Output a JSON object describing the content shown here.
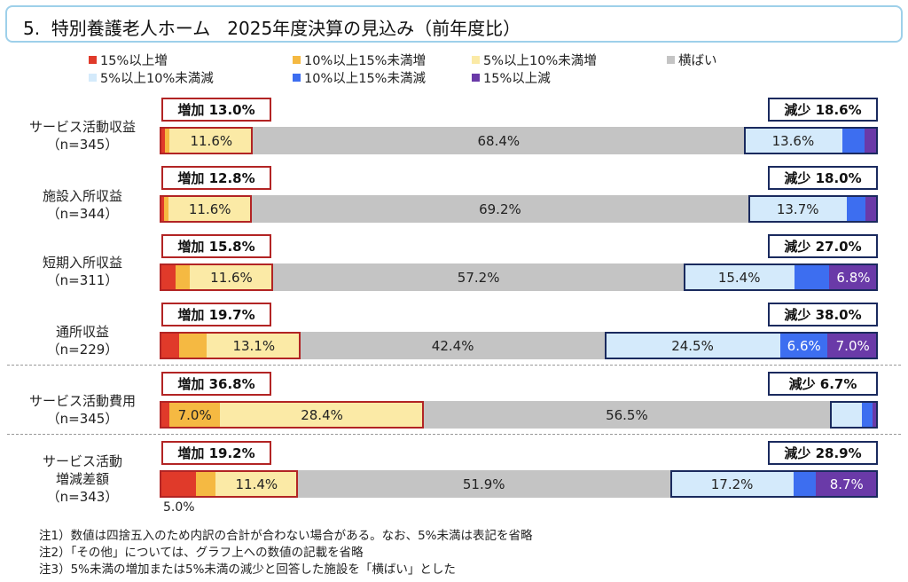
{
  "title": "5.  特別養護老人ホーム   2025年度決算の見込み（前年度比）",
  "legend": [
    {
      "key": "inc15",
      "label": "15%以上増",
      "color": "#e03a2a"
    },
    {
      "key": "inc10",
      "label": "10%以上15%未満増",
      "color": "#f5b942"
    },
    {
      "key": "inc5",
      "label": "5%以上10%未満増",
      "color": "#fbeaa6"
    },
    {
      "key": "flat",
      "label": "横ばい",
      "color": "#c4c4c4"
    },
    {
      "key": "dec5",
      "label": "5%以上10%未満減",
      "color": "#d4eafb"
    },
    {
      "key": "dec10",
      "label": "10%以上15%未満減",
      "color": "#3d6ef0"
    },
    {
      "key": "dec15",
      "label": "15%以上減",
      "color": "#6a3aa8"
    }
  ],
  "chart_data": {
    "type": "bar",
    "orientation": "horizontal",
    "stacked": true,
    "title": "5. 特別養護老人ホーム 2025年度決算の見込み（前年度比）",
    "series_order": [
      "15%以上増",
      "10%以上15%未満増",
      "5%以上10%未満増",
      "横ばい",
      "5%以上10%未満減",
      "10%以上15%未満減",
      "15%以上減"
    ],
    "categories": [
      {
        "lines": [
          "サービス活動収益",
          "（n=345）"
        ],
        "n": 345,
        "values": [
          0.7,
          0.7,
          11.6,
          68.4,
          13.6,
          3.1,
          1.9
        ],
        "labels": [
          "",
          "",
          "11.6%",
          "68.4%",
          "13.6%",
          "",
          ""
        ],
        "increase_label": "増加 13.0%",
        "decrease_label": "減少 18.6%"
      },
      {
        "lines": [
          "施設入所収益",
          "（n=344）"
        ],
        "n": 344,
        "values": [
          0.6,
          0.6,
          11.6,
          69.2,
          13.7,
          2.6,
          1.7
        ],
        "labels": [
          "",
          "",
          "11.6%",
          "69.2%",
          "13.7%",
          "",
          ""
        ],
        "increase_label": "増加 12.8%",
        "decrease_label": "減少 18.0%"
      },
      {
        "lines": [
          "短期入所収益",
          "（n=311）"
        ],
        "n": 311,
        "values": [
          2.2,
          2.0,
          11.6,
          57.2,
          15.4,
          4.8,
          6.8
        ],
        "labels": [
          "",
          "",
          "11.6%",
          "57.2%",
          "15.4%",
          "",
          "6.8%"
        ],
        "increase_label": "増加 15.8%",
        "decrease_label": "減少 27.0%"
      },
      {
        "lines": [
          "通所収益",
          "（n=229）"
        ],
        "n": 229,
        "values": [
          2.7,
          3.9,
          13.1,
          42.4,
          24.5,
          6.6,
          7.0
        ],
        "labels": [
          "",
          "",
          "13.1%",
          "42.4%",
          "24.5%",
          "6.6%",
          "7.0%"
        ],
        "increase_label": "増加 19.7%",
        "decrease_label": "減少 38.0%"
      },
      {
        "lines": [
          "サービス活動費用",
          "（n=345）"
        ],
        "n": 345,
        "values": [
          1.4,
          7.0,
          28.4,
          56.5,
          4.5,
          1.4,
          0.8
        ],
        "labels": [
          "",
          "7.0%",
          "28.4%",
          "56.5%",
          "",
          "",
          ""
        ],
        "increase_label": "増加 36.8%",
        "decrease_label": "減少 6.7%"
      },
      {
        "lines": [
          "サービス活動",
          "増減差額",
          "（n=343）"
        ],
        "n": 343,
        "values": [
          5.0,
          2.8,
          11.4,
          51.9,
          17.2,
          3.0,
          8.7
        ],
        "labels": [
          "",
          "",
          "11.4%",
          "51.9%",
          "17.2%",
          "",
          "8.7%"
        ],
        "increase_label": "増加 19.2%",
        "decrease_label": "減少 28.9%"
      }
    ],
    "under_label": "5.0%",
    "xlim": [
      0,
      100
    ]
  },
  "notes": [
    "注1）数値は四捨五入のため内訳の合計が合わない場合がある。なお、5%未満は表記を省略",
    "注2）「その他」については、グラフ上への数値の記載を省略",
    "注3）5%未満の増加または5%未満の減少と回答した施設を「横ばい」とした"
  ]
}
